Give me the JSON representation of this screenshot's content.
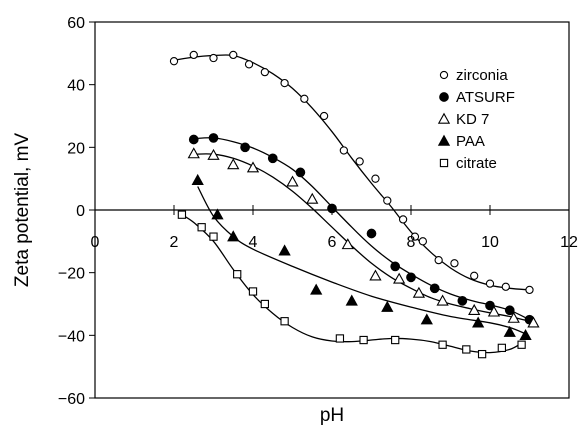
{
  "chart_data": {
    "type": "scatter",
    "xlabel": "pH",
    "ylabel": "Zeta potential, mV",
    "xlim": [
      0,
      12
    ],
    "ylim": [
      -60,
      60
    ],
    "x_ticks": [
      0,
      2,
      4,
      6,
      8,
      10,
      12
    ],
    "y_ticks": [
      -60,
      -40,
      -20,
      0,
      20,
      40,
      60
    ],
    "x_tick_labels": [
      "0",
      "2",
      "4",
      "6",
      "8",
      "10",
      "12"
    ],
    "y_tick_labels": [
      "−60",
      "−40",
      "−20",
      "0",
      "20",
      "40",
      "60"
    ],
    "grid": false,
    "legend_position": "right",
    "series": [
      {
        "name": "zirconia",
        "marker": "open-circle",
        "points": [
          [
            2.0,
            47.5
          ],
          [
            2.5,
            49.5
          ],
          [
            3.0,
            48.5
          ],
          [
            3.5,
            49.5
          ],
          [
            3.9,
            46.5
          ],
          [
            4.3,
            44
          ],
          [
            4.8,
            40.5
          ],
          [
            5.3,
            35.5
          ],
          [
            5.8,
            30
          ],
          [
            6.3,
            19
          ],
          [
            6.7,
            15.5
          ],
          [
            7.1,
            10
          ],
          [
            7.4,
            3
          ],
          [
            7.8,
            -3
          ],
          [
            8.1,
            -8.5
          ],
          [
            8.3,
            -10
          ],
          [
            8.7,
            -16
          ],
          [
            9.1,
            -17
          ],
          [
            9.6,
            -21
          ],
          [
            10.0,
            -23.5
          ],
          [
            10.4,
            -24.5
          ],
          [
            11.0,
            -25.5
          ]
        ],
        "curve": [
          [
            2.0,
            47.8
          ],
          [
            2.5,
            48.8
          ],
          [
            3.0,
            49.3
          ],
          [
            3.5,
            49.3
          ],
          [
            4.0,
            47
          ],
          [
            4.5,
            43.5
          ],
          [
            5.0,
            38.8
          ],
          [
            5.5,
            32.5
          ],
          [
            6.0,
            25
          ],
          [
            6.5,
            16.5
          ],
          [
            7.0,
            8.5
          ],
          [
            7.5,
            1
          ],
          [
            8.0,
            -7
          ],
          [
            8.5,
            -13.5
          ],
          [
            9.0,
            -18.5
          ],
          [
            9.5,
            -22
          ],
          [
            10.0,
            -24
          ],
          [
            10.5,
            -25
          ],
          [
            11.0,
            -25.5
          ]
        ]
      },
      {
        "name": "ATSURF",
        "marker": "filled-circle",
        "points": [
          [
            2.5,
            22.5
          ],
          [
            3.0,
            23
          ],
          [
            3.8,
            20
          ],
          [
            4.5,
            16.5
          ],
          [
            5.2,
            12
          ],
          [
            6.0,
            0.5
          ],
          [
            7.0,
            -7.5
          ],
          [
            7.6,
            -18
          ],
          [
            8.0,
            -21.5
          ],
          [
            8.6,
            -25
          ],
          [
            9.3,
            -29
          ],
          [
            10.0,
            -30.5
          ],
          [
            10.5,
            -32
          ],
          [
            11.0,
            -35
          ]
        ],
        "curve": [
          [
            2.5,
            22.8
          ],
          [
            3.0,
            23
          ],
          [
            3.5,
            21.8
          ],
          [
            4.0,
            19.8
          ],
          [
            4.5,
            16.8
          ],
          [
            5.0,
            13
          ],
          [
            5.5,
            7.5
          ],
          [
            6.0,
            1
          ],
          [
            6.5,
            -5.5
          ],
          [
            7.0,
            -11.5
          ],
          [
            7.5,
            -16.5
          ],
          [
            8.0,
            -20.5
          ],
          [
            8.5,
            -24
          ],
          [
            9.0,
            -26.8
          ],
          [
            9.5,
            -28.8
          ],
          [
            10.0,
            -30.3
          ],
          [
            10.5,
            -32
          ],
          [
            11.0,
            -35
          ]
        ]
      },
      {
        "name": "KD 7",
        "marker": "open-triangle",
        "points": [
          [
            2.5,
            18
          ],
          [
            3.0,
            17.5
          ],
          [
            3.5,
            14.5
          ],
          [
            4.0,
            13.5
          ],
          [
            5.0,
            9
          ],
          [
            5.5,
            3.5
          ],
          [
            6.4,
            -11
          ],
          [
            7.1,
            -21
          ],
          [
            7.7,
            -22
          ],
          [
            8.2,
            -26.5
          ],
          [
            8.8,
            -29
          ],
          [
            9.6,
            -32
          ],
          [
            10.1,
            -32.5
          ],
          [
            10.6,
            -34.5
          ],
          [
            11.1,
            -36
          ]
        ],
        "curve": [
          [
            2.5,
            17.8
          ],
          [
            3.0,
            17.8
          ],
          [
            3.5,
            16.5
          ],
          [
            4.0,
            14
          ],
          [
            4.5,
            10.5
          ],
          [
            5.0,
            6
          ],
          [
            5.5,
            0.5
          ],
          [
            6.0,
            -5.5
          ],
          [
            6.5,
            -11.5
          ],
          [
            7.0,
            -17
          ],
          [
            7.5,
            -21.5
          ],
          [
            8.0,
            -25
          ],
          [
            8.5,
            -28
          ],
          [
            9.0,
            -30
          ],
          [
            9.5,
            -31.5
          ],
          [
            10.0,
            -32.8
          ],
          [
            10.5,
            -34
          ],
          [
            11.1,
            -35.8
          ]
        ]
      },
      {
        "name": "PAA",
        "marker": "filled-triangle",
        "points": [
          [
            2.6,
            9.5
          ],
          [
            3.1,
            -1.5
          ],
          [
            3.5,
            -8.5
          ],
          [
            4.8,
            -13
          ],
          [
            5.6,
            -25.5
          ],
          [
            6.5,
            -29
          ],
          [
            7.4,
            -31
          ],
          [
            8.4,
            -35
          ],
          [
            9.7,
            -36
          ],
          [
            10.5,
            -39
          ],
          [
            10.9,
            -40
          ]
        ],
        "curve": [
          [
            2.6,
            7.5
          ],
          [
            3.0,
            -2
          ],
          [
            3.5,
            -8.5
          ],
          [
            4.0,
            -12.5
          ],
          [
            5.0,
            -18
          ],
          [
            6.0,
            -23
          ],
          [
            7.0,
            -27.5
          ],
          [
            8.0,
            -31
          ],
          [
            9.0,
            -34
          ],
          [
            10.0,
            -36
          ],
          [
            10.5,
            -37.5
          ],
          [
            10.9,
            -39.5
          ]
        ]
      },
      {
        "name": "citrate",
        "marker": "open-square",
        "points": [
          [
            2.2,
            -1.5
          ],
          [
            2.7,
            -5.5
          ],
          [
            3.0,
            -8.5
          ],
          [
            3.6,
            -20.5
          ],
          [
            4.0,
            -26
          ],
          [
            4.3,
            -30
          ],
          [
            4.8,
            -35.5
          ],
          [
            6.2,
            -41
          ],
          [
            6.8,
            -41.5
          ],
          [
            7.6,
            -41.5
          ],
          [
            8.8,
            -43
          ],
          [
            9.4,
            -44.5
          ],
          [
            9.8,
            -46
          ],
          [
            10.3,
            -44
          ],
          [
            10.8,
            -43
          ]
        ],
        "curve": [
          [
            2.2,
            -1.5
          ],
          [
            2.5,
            -4
          ],
          [
            3.0,
            -10
          ],
          [
            3.5,
            -19
          ],
          [
            4.0,
            -27
          ],
          [
            4.5,
            -33
          ],
          [
            5.0,
            -37.5
          ],
          [
            5.5,
            -40.5
          ],
          [
            6.0,
            -41.8
          ],
          [
            6.5,
            -42
          ],
          [
            7.0,
            -41.5
          ],
          [
            7.5,
            -41
          ],
          [
            8.0,
            -41.2
          ],
          [
            8.5,
            -42
          ],
          [
            9.0,
            -43.5
          ],
          [
            9.5,
            -45
          ],
          [
            10.0,
            -45.5
          ],
          [
            10.5,
            -44.5
          ],
          [
            10.8,
            -42.5
          ]
        ]
      }
    ]
  }
}
